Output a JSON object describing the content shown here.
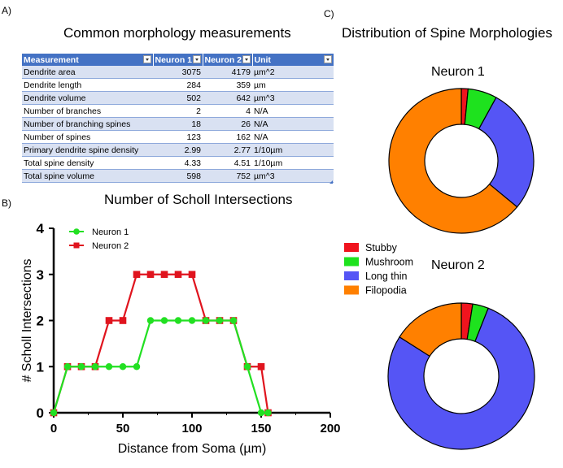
{
  "panels": {
    "a": "A)",
    "b": "B)",
    "c": "C)"
  },
  "table": {
    "title": "Common morphology measurements",
    "headers": [
      "Measurement",
      "Neuron 1",
      "Neuron 2",
      "Unit"
    ],
    "rows": [
      [
        "Dendrite area",
        "3075",
        "4179",
        "µm^2"
      ],
      [
        "Dendrite length",
        "284",
        "359",
        "µm"
      ],
      [
        "Dendrite volume",
        "502",
        "642",
        "µm^3"
      ],
      [
        "Number of branches",
        "2",
        "4",
        "N/A"
      ],
      [
        "Number of branching spines",
        "18",
        "26",
        "N/A"
      ],
      [
        "Number of spines",
        "123",
        "162",
        "N/A"
      ],
      [
        "Primary dendrite spine density",
        "2.99",
        "2.77",
        "1/10µm"
      ],
      [
        "Total spine density",
        "4.33",
        "4.51",
        "1/10µm"
      ],
      [
        "Total spine volume",
        "598",
        "752",
        "µm^3"
      ]
    ]
  },
  "chart_data": [
    {
      "type": "line",
      "title": "Number of Scholl Intersections",
      "xlabel": "Distance from Soma (µm)",
      "ylabel": "# Scholl Intersections",
      "xlim": [
        0,
        200
      ],
      "ylim": [
        0,
        4
      ],
      "xticks": [
        "0",
        "50",
        "100",
        "150",
        "200"
      ],
      "yticks": [
        "0",
        "1",
        "2",
        "3",
        "4"
      ],
      "legend": "top-left",
      "grid": false,
      "series": [
        {
          "name": "Neuron 1",
          "color": "#22E022",
          "marker": "circle",
          "x": [
            0,
            10,
            20,
            30,
            40,
            50,
            60,
            70,
            80,
            90,
            100,
            110,
            120,
            130,
            140,
            150,
            155
          ],
          "y": [
            0,
            1,
            1,
            1,
            1,
            1,
            1,
            2,
            2,
            2,
            2,
            2,
            2,
            2,
            1,
            0,
            0
          ]
        },
        {
          "name": "Neuron 2",
          "color": "#E0141E",
          "marker": "square",
          "x": [
            0,
            10,
            20,
            30,
            40,
            50,
            60,
            70,
            80,
            90,
            100,
            110,
            120,
            130,
            140,
            150,
            155
          ],
          "y": [
            0,
            1,
            1,
            1,
            2,
            2,
            3,
            3,
            3,
            3,
            3,
            2,
            2,
            2,
            1,
            1,
            0
          ]
        }
      ]
    },
    {
      "type": "pie",
      "title": "Distribution of Spine Morphologies",
      "subtitle": "Neuron 1",
      "legend": "left",
      "categories": [
        "Stubby",
        "Mushroom",
        "Long thin",
        "Filopodia"
      ],
      "colors": [
        "#F0141E",
        "#1EE21E",
        "#5555F5",
        "#FF8000"
      ],
      "values": [
        1.5,
        6.5,
        28,
        64
      ]
    },
    {
      "type": "pie",
      "subtitle": "Neuron 2",
      "categories": [
        "Stubby",
        "Mushroom",
        "Long thin",
        "Filopodia"
      ],
      "colors": [
        "#F0141E",
        "#1EE21E",
        "#5555F5",
        "#FF8000"
      ],
      "values": [
        2.5,
        3.5,
        78,
        16
      ]
    }
  ]
}
